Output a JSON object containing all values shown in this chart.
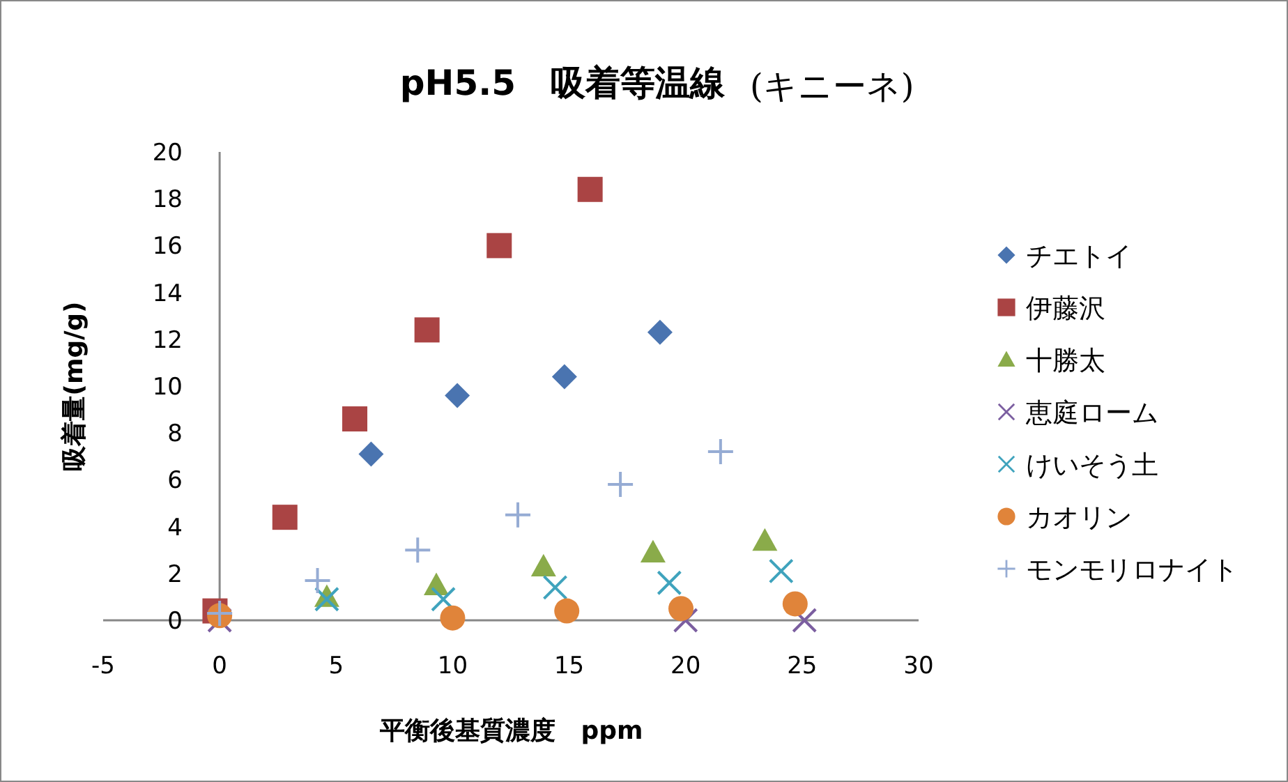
{
  "chart_data": {
    "type": "scatter",
    "title": "pH5.5　吸着等温線",
    "subtitle": "(キニーネ)",
    "xlabel": "平衡後基質濃度　ppm",
    "ylabel": "吸着量(mg/g)",
    "xlim": [
      -5,
      30
    ],
    "xticks": [
      -5,
      0,
      5,
      10,
      15,
      20,
      25,
      30
    ],
    "ylim": [
      0,
      20
    ],
    "yticks": [
      0,
      2,
      4,
      6,
      8,
      10,
      12,
      14,
      16,
      18,
      20
    ],
    "grid": false,
    "legend": "right",
    "series": [
      {
        "name": "チエトイ",
        "color": "#4a74b0",
        "marker": "diamond",
        "x": [
          6.5,
          10.2,
          14.8,
          18.9
        ],
        "values": [
          7.1,
          9.6,
          10.4,
          12.3
        ]
      },
      {
        "name": "伊藤沢",
        "color": "#aa4444",
        "marker": "square",
        "x": [
          -0.2,
          2.8,
          5.8,
          8.9,
          12.0,
          15.9
        ],
        "values": [
          0.4,
          4.4,
          8.6,
          12.4,
          16.0,
          18.4
        ]
      },
      {
        "name": "十勝太",
        "color": "#8aab4a",
        "marker": "triangle",
        "x": [
          4.6,
          9.3,
          13.9,
          18.6,
          23.4
        ],
        "values": [
          1.0,
          1.5,
          2.3,
          2.9,
          3.4
        ]
      },
      {
        "name": "恵庭ローム",
        "color": "#7b5ea0",
        "marker": "cross",
        "x": [
          0,
          20.0,
          25.1
        ],
        "values": [
          0,
          0,
          0
        ]
      },
      {
        "name": "けいそう土",
        "color": "#3fa3bd",
        "marker": "cross",
        "x": [
          4.6,
          9.6,
          14.4,
          19.3,
          24.1
        ],
        "values": [
          0.9,
          0.9,
          1.4,
          1.6,
          2.1
        ]
      },
      {
        "name": "カオリン",
        "color": "#e0843a",
        "marker": "circle",
        "x": [
          0,
          10.0,
          14.9,
          19.8,
          24.7
        ],
        "values": [
          0.2,
          0.1,
          0.4,
          0.5,
          0.7
        ]
      },
      {
        "name": "モンモリロナイト",
        "color": "#96acd4",
        "marker": "plus",
        "x": [
          0,
          4.2,
          8.5,
          12.8,
          17.2,
          21.5
        ],
        "values": [
          0.3,
          1.7,
          3.0,
          4.5,
          5.8,
          7.2
        ]
      }
    ]
  }
}
